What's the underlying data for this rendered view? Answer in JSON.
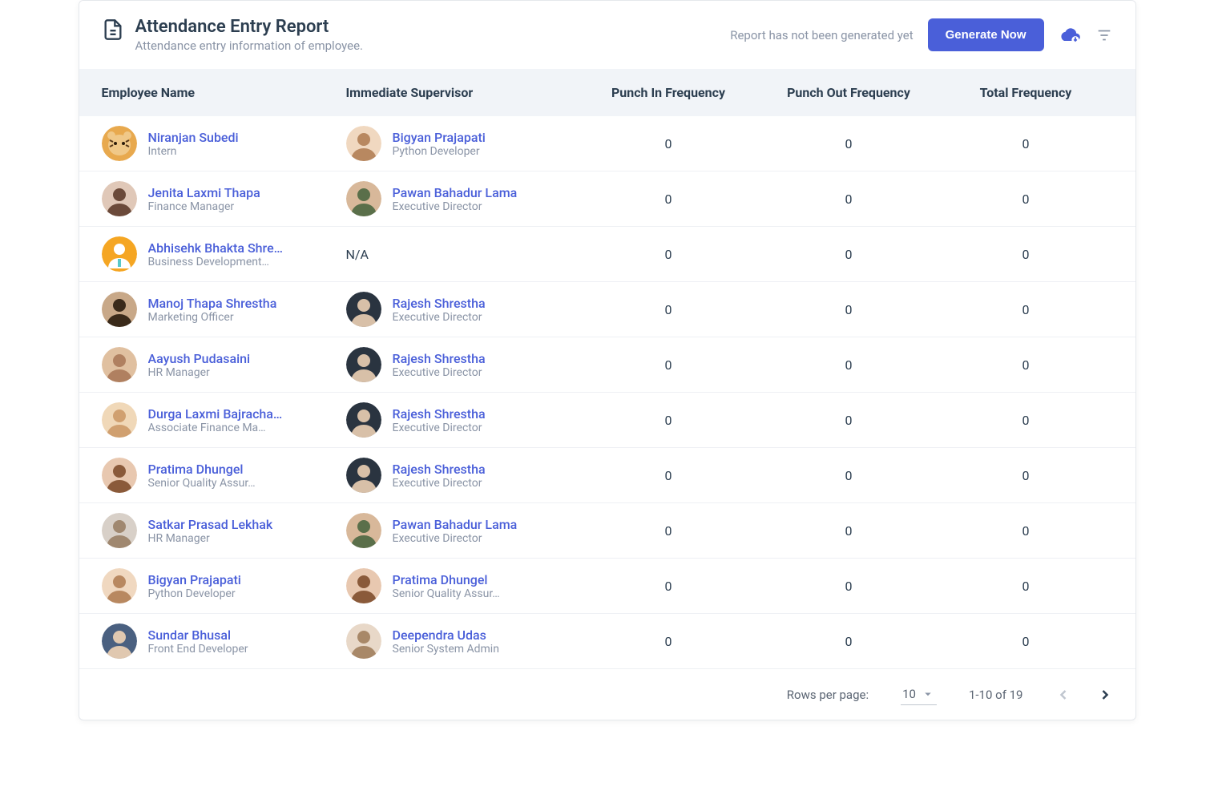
{
  "header": {
    "title": "Attendance Entry Report",
    "subtitle": "Attendance entry information of employee.",
    "status": "Report has not been generated yet",
    "generate_button": "Generate Now"
  },
  "columns": {
    "employee": "Employee Name",
    "supervisor": "Immediate Supervisor",
    "punch_in": "Punch In Frequency",
    "punch_out": "Punch Out Frequency",
    "total": "Total Frequency"
  },
  "rows": [
    {
      "emp_name": "Niranjan Subedi",
      "emp_role": "Intern",
      "emp_avatar": "tiger",
      "sup_name": "Bigyan Prajapati",
      "sup_role": "Python Developer",
      "sup_avatar": "m1",
      "punch_in": "0",
      "punch_out": "0",
      "total": "0"
    },
    {
      "emp_name": "Jenita Laxmi Thapa",
      "emp_role": "Finance Manager",
      "emp_avatar": "f1",
      "sup_name": "Pawan Bahadur Lama",
      "sup_role": "Executive Director",
      "sup_avatar": "m2",
      "punch_in": "0",
      "punch_out": "0",
      "total": "0"
    },
    {
      "emp_name": "Abhisehk Bhakta Shre…",
      "emp_role": "Business Development…",
      "emp_avatar": "placeholder",
      "sup_na": "N/A",
      "punch_in": "0",
      "punch_out": "0",
      "total": "0"
    },
    {
      "emp_name": "Manoj Thapa Shrestha",
      "emp_role": "Marketing Officer",
      "emp_avatar": "m3",
      "sup_name": "Rajesh Shrestha",
      "sup_role": "Executive Director",
      "sup_avatar": "m4",
      "punch_in": "0",
      "punch_out": "0",
      "total": "0"
    },
    {
      "emp_name": "Aayush Pudasaini",
      "emp_role": "HR Manager",
      "emp_avatar": "m5",
      "sup_name": "Rajesh Shrestha",
      "sup_role": "Executive Director",
      "sup_avatar": "m4",
      "punch_in": "0",
      "punch_out": "0",
      "total": "0"
    },
    {
      "emp_name": "Durga Laxmi Bajracha…",
      "emp_role": "Associate Finance Ma…",
      "emp_avatar": "f2",
      "sup_name": "Rajesh Shrestha",
      "sup_role": "Executive Director",
      "sup_avatar": "m4",
      "punch_in": "0",
      "punch_out": "0",
      "total": "0"
    },
    {
      "emp_name": "Pratima Dhungel",
      "emp_role": "Senior Quality Assur…",
      "emp_avatar": "f3",
      "sup_name": "Rajesh Shrestha",
      "sup_role": "Executive Director",
      "sup_avatar": "m4",
      "punch_in": "0",
      "punch_out": "0",
      "total": "0"
    },
    {
      "emp_name": "Satkar Prasad Lekhak",
      "emp_role": "HR Manager",
      "emp_avatar": "m6",
      "sup_name": "Pawan Bahadur Lama",
      "sup_role": "Executive Director",
      "sup_avatar": "m2",
      "punch_in": "0",
      "punch_out": "0",
      "total": "0"
    },
    {
      "emp_name": "Bigyan Prajapati",
      "emp_role": "Python Developer",
      "emp_avatar": "m1",
      "sup_name": "Pratima Dhungel",
      "sup_role": "Senior Quality Assur…",
      "sup_avatar": "f3",
      "punch_in": "0",
      "punch_out": "0",
      "total": "0"
    },
    {
      "emp_name": "Sundar Bhusal",
      "emp_role": "Front End Developer",
      "emp_avatar": "m7",
      "sup_name": "Deependra Udas",
      "sup_role": "Senior System Admin",
      "sup_avatar": "m8",
      "punch_in": "0",
      "punch_out": "0",
      "total": "0"
    }
  ],
  "avatar_colors": {
    "tiger": {
      "bg": "#e8a94e",
      "fg": "#5a3a1a"
    },
    "f1": {
      "bg": "#e0c8b8",
      "fg": "#6b4a3a"
    },
    "placeholder": {
      "bg": "#f5a623",
      "fg": "#ffffff"
    },
    "m1": {
      "bg": "#f0d8c0",
      "fg": "#b88860"
    },
    "m2": {
      "bg": "#d8b89a",
      "fg": "#5a6f4a"
    },
    "m3": {
      "bg": "#c8a888",
      "fg": "#3a2a1a"
    },
    "m4": {
      "bg": "#2a3440",
      "fg": "#d8c0a8"
    },
    "m5": {
      "bg": "#e0c0a0",
      "fg": "#b08060"
    },
    "f2": {
      "bg": "#f0d8b8",
      "fg": "#d0a070"
    },
    "f3": {
      "bg": "#e8c8b0",
      "fg": "#8a5a3a"
    },
    "m6": {
      "bg": "#d8d0c8",
      "fg": "#a08870"
    },
    "m7": {
      "bg": "#4a6080",
      "fg": "#e0c8b0"
    },
    "m8": {
      "bg": "#e8d8c8",
      "fg": "#a88868"
    }
  },
  "pagination": {
    "rows_label": "Rows per page:",
    "rows_value": "10",
    "range": "1-10 of 19"
  },
  "colors": {
    "primary": "#4a5fd9",
    "text": "#2c3e50",
    "muted": "#8a94a6",
    "header_bg": "#f1f4f8",
    "border": "#eef0f4"
  }
}
